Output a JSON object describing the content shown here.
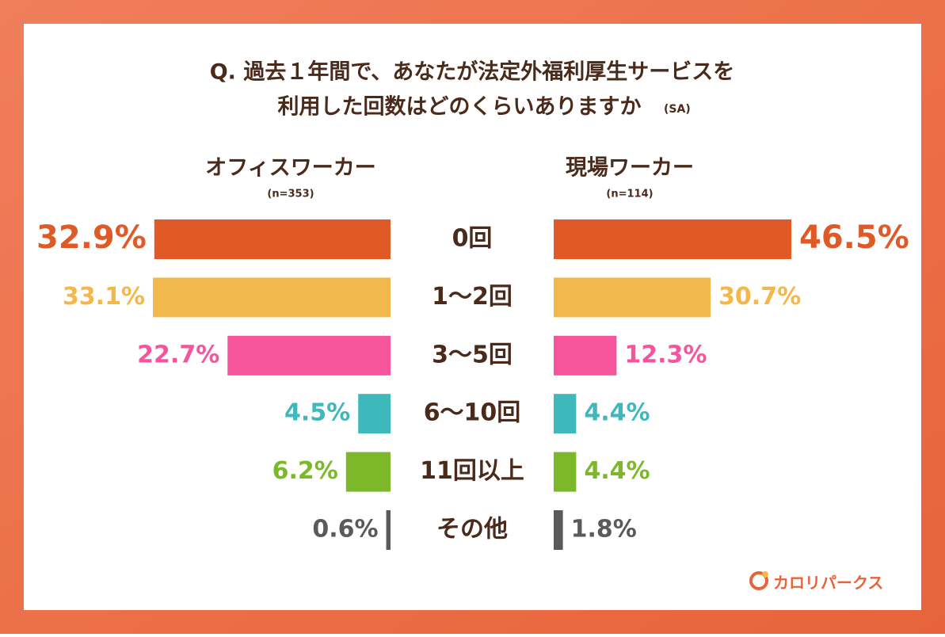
{
  "chart_data": {
    "type": "butterfly",
    "title_lines": [
      "Q. 過去１年間で、あなたが法定外福利厚生サービスを",
      "利用した回数はどのくらいありますか"
    ],
    "title_note": "(SA)",
    "categories": [
      "0回",
      "1〜2回",
      "3〜5回",
      "6〜10回",
      "11回以上",
      "その他"
    ],
    "colors": [
      "#e05a28",
      "#f2b84b",
      "#f7559b",
      "#3fb8bc",
      "#7cb82a",
      "#5a5a5a"
    ],
    "series": [
      {
        "name": "オフィスワーカー",
        "subtitle": "(n=353)",
        "xlim": [
          0,
          33.1
        ],
        "values": [
          32.9,
          33.1,
          22.7,
          4.5,
          6.2,
          0.6
        ],
        "value_labels": [
          "32.9%",
          "33.1%",
          "22.7%",
          "4.5%",
          "6.2%",
          "0.6%"
        ]
      },
      {
        "name": "現場ワーカー",
        "subtitle": "(n=114)",
        "xlim": [
          0,
          46.5
        ],
        "values": [
          46.5,
          30.7,
          12.3,
          4.4,
          4.4,
          1.8
        ],
        "value_labels": [
          "46.5%",
          "30.7%",
          "12.3%",
          "4.4%",
          "4.4%",
          "1.8%"
        ]
      }
    ],
    "brand": "カロリパークス"
  }
}
